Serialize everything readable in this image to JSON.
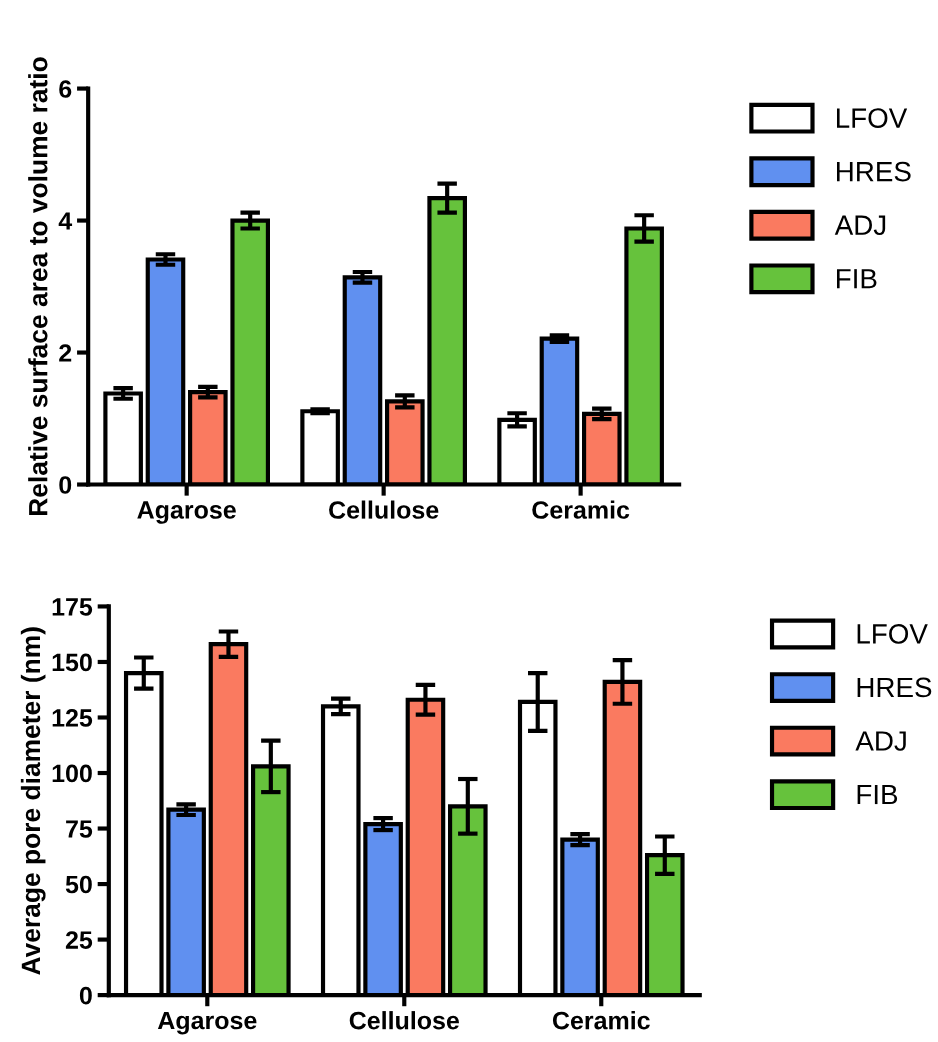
{
  "chart_data": [
    {
      "type": "bar",
      "ylabel": "Relative surface area to volume ratio",
      "categories": [
        "Agarose",
        "Cellulose",
        "Ceramic"
      ],
      "ylim": [
        0,
        6
      ],
      "yticks": [
        0,
        2,
        4,
        6
      ],
      "legend": "right",
      "grid": false,
      "series": [
        {
          "name": "LFOV",
          "color": "#ffffff",
          "values": [
            1.38,
            1.11,
            0.98
          ],
          "errors": [
            0.08,
            0.03,
            0.1
          ]
        },
        {
          "name": "HRES",
          "color": "#6090f0",
          "values": [
            3.41,
            3.14,
            2.21
          ],
          "errors": [
            0.08,
            0.08,
            0.05
          ]
        },
        {
          "name": "ADJ",
          "color": "#fa7a60",
          "values": [
            1.4,
            1.26,
            1.07
          ],
          "errors": [
            0.08,
            0.09,
            0.08
          ]
        },
        {
          "name": "FIB",
          "color": "#66c23c",
          "values": [
            4.0,
            4.34,
            3.88
          ],
          "errors": [
            0.12,
            0.22,
            0.2
          ]
        }
      ]
    },
    {
      "type": "bar",
      "ylabel": "Average pore diameter (nm)",
      "categories": [
        "Agarose",
        "Cellulose",
        "Ceramic"
      ],
      "ylim": [
        0,
        175
      ],
      "yticks": [
        0,
        25,
        50,
        75,
        100,
        125,
        150,
        175
      ],
      "legend": "right",
      "grid": false,
      "series": [
        {
          "name": "LFOV",
          "color": "#ffffff",
          "values": [
            145,
            130,
            132
          ],
          "errors": [
            7,
            3.5,
            13
          ]
        },
        {
          "name": "HRES",
          "color": "#6090f0",
          "values": [
            83.5,
            77,
            70
          ],
          "errors": [
            2.4,
            2.7,
            2.5
          ]
        },
        {
          "name": "ADJ",
          "color": "#fa7a60",
          "values": [
            158,
            133,
            141
          ],
          "errors": [
            5.7,
            6.7,
            9.8
          ]
        },
        {
          "name": "FIB",
          "color": "#66c23c",
          "values": [
            103,
            85,
            63
          ],
          "errors": [
            11.6,
            12.3,
            8.4
          ]
        }
      ]
    }
  ]
}
